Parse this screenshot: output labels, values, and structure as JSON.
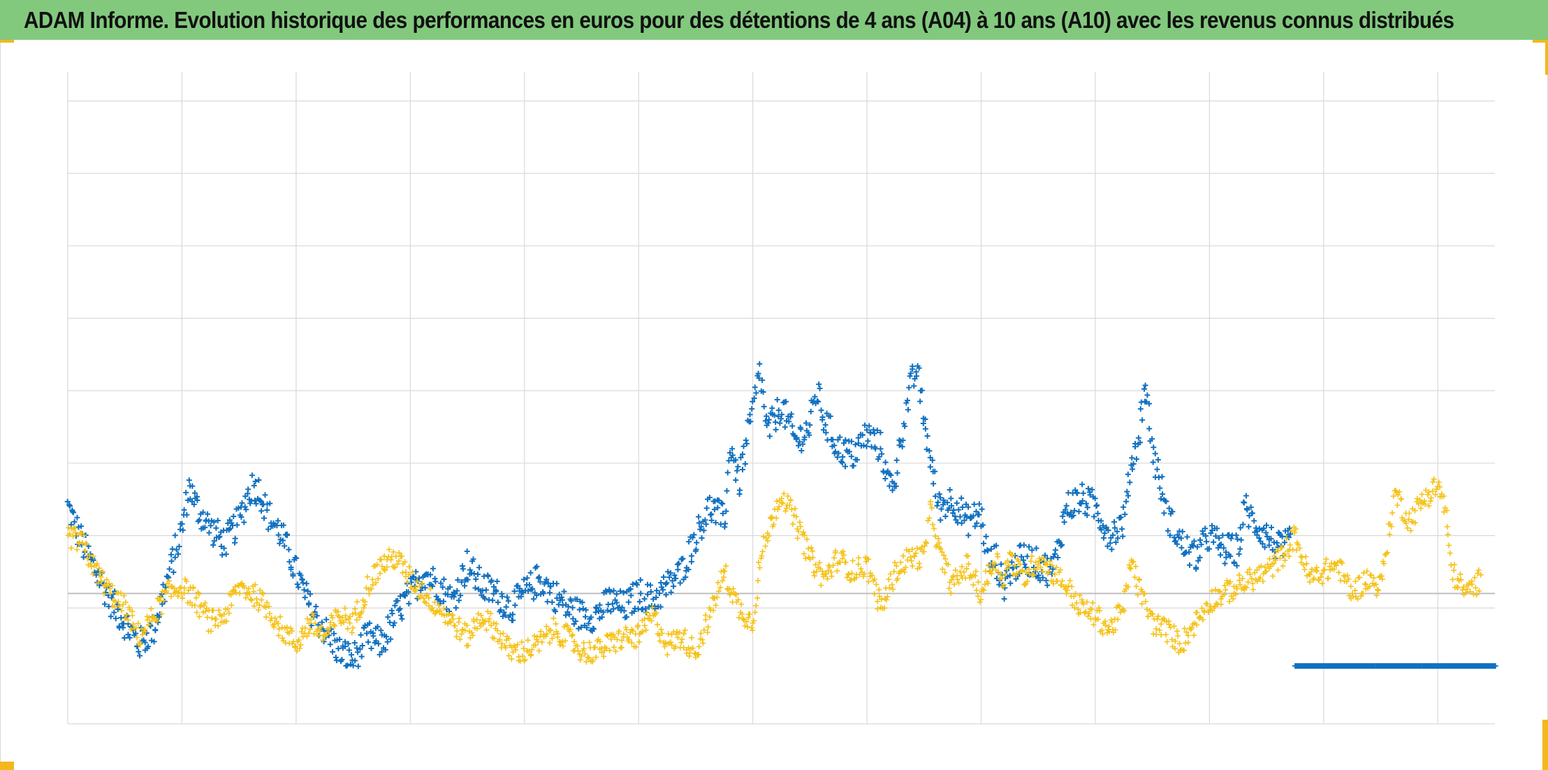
{
  "title": "ADAM Informe. Evolution historique des performances en euros pour des détentions de 4 ans (A04) à 10 ans (A10) avec les revenus connus distribués",
  "colors": {
    "title_background": "#82c97e",
    "series_a04": "#1070c0",
    "series_a10": "#f5c218",
    "grid": "#d9d9d9",
    "zero_line": "#bfbfbf",
    "corner_accent": "#f2b81c"
  },
  "chart_data": {
    "type": "scatter",
    "title": "ADAM Informe. Evolution historique des performances en euros pour des détentions de 4 ans (A04) à 10 ans (A10) avec les revenus connus distribués",
    "xlabel": "",
    "ylabel": "",
    "x_tick_labels": [],
    "y_tick_labels": [],
    "grid": true,
    "legend": "none",
    "marker": "+",
    "xlim": [
      0,
      100
    ],
    "ylim": [
      -1.8,
      7.2
    ],
    "y_gridlines": [
      -1.8,
      -0.2,
      0.8,
      1.8,
      2.8,
      3.8,
      4.8,
      5.8,
      6.8
    ],
    "x_gridlines": [
      0,
      8,
      16,
      24,
      32,
      40,
      48,
      56,
      64,
      72,
      80,
      88,
      96
    ],
    "series": [
      {
        "values": [
          [
            0,
            1.2
          ],
          [
            1,
            0.7
          ],
          [
            2,
            0.3
          ],
          [
            3,
            -0.1
          ],
          [
            4,
            -0.4
          ],
          [
            5,
            -0.7
          ],
          [
            6,
            -0.5
          ],
          [
            7,
            0.2
          ],
          [
            8,
            0.9
          ],
          [
            8.5,
            1.5
          ],
          [
            9,
            1.2
          ],
          [
            10,
            0.9
          ],
          [
            11,
            0.7
          ],
          [
            12,
            1.0
          ],
          [
            12.5,
            1.3
          ],
          [
            13,
            1.5
          ],
          [
            13.5,
            1.4
          ],
          [
            14,
            1.1
          ],
          [
            15,
            0.8
          ],
          [
            16,
            0.3
          ],
          [
            17,
            -0.2
          ],
          [
            18,
            -0.5
          ],
          [
            19,
            -0.8
          ],
          [
            20,
            -0.9
          ],
          [
            21,
            -0.6
          ],
          [
            22,
            -0.7
          ],
          [
            23,
            -0.3
          ],
          [
            24,
            0.0
          ],
          [
            25,
            0.3
          ],
          [
            26,
            0.1
          ],
          [
            27,
            -0.1
          ],
          [
            28,
            0.4
          ],
          [
            29,
            0.1
          ],
          [
            30,
            0.0
          ],
          [
            31,
            -0.2
          ],
          [
            32,
            0.0
          ],
          [
            33,
            0.2
          ],
          [
            34,
            0.0
          ],
          [
            35,
            -0.2
          ],
          [
            36,
            -0.3
          ],
          [
            37,
            -0.3
          ],
          [
            38,
            -0.1
          ],
          [
            39,
            -0.2
          ],
          [
            40,
            0.0
          ],
          [
            41,
            -0.1
          ],
          [
            42,
            0.1
          ],
          [
            43,
            0.3
          ],
          [
            44,
            0.8
          ],
          [
            45,
            1.2
          ],
          [
            46,
            1.0
          ],
          [
            46.5,
            2.1
          ],
          [
            47,
            1.5
          ],
          [
            48,
            2.5
          ],
          [
            48.5,
            3.1
          ],
          [
            49,
            2.2
          ],
          [
            50,
            2.6
          ],
          [
            51,
            2.1
          ],
          [
            52,
            2.3
          ],
          [
            52.5,
            2.8
          ],
          [
            53,
            2.4
          ],
          [
            54,
            2.0
          ],
          [
            55,
            1.9
          ],
          [
            56,
            2.2
          ],
          [
            57,
            2.0
          ],
          [
            57.5,
            1.5
          ],
          [
            58,
            1.6
          ],
          [
            58.5,
            2.3
          ],
          [
            59,
            2.8
          ],
          [
            59.5,
            3.1
          ],
          [
            60,
            2.4
          ],
          [
            61,
            1.2
          ],
          [
            62,
            1.3
          ],
          [
            63,
            1.0
          ],
          [
            64,
            1.1
          ],
          [
            64.5,
            0.4
          ],
          [
            65,
            0.5
          ],
          [
            65.5,
            0.1
          ],
          [
            66,
            0.3
          ],
          [
            67,
            0.5
          ],
          [
            68,
            0.4
          ],
          [
            69,
            0.3
          ],
          [
            70,
            1.2
          ],
          [
            71,
            1.3
          ],
          [
            72,
            1.2
          ],
          [
            73,
            0.8
          ],
          [
            74,
            1.0
          ],
          [
            74.5,
            1.8
          ],
          [
            75,
            2.1
          ],
          [
            75.5,
            2.9
          ],
          [
            76,
            2.0
          ],
          [
            77,
            1.1
          ],
          [
            77.5,
            0.9
          ],
          [
            78,
            0.7
          ],
          [
            79,
            0.5
          ],
          [
            80,
            0.8
          ],
          [
            81,
            0.6
          ],
          [
            82,
            0.6
          ],
          [
            82.5,
            1.2
          ],
          [
            83,
            1.0
          ],
          [
            84,
            0.8
          ],
          [
            85,
            0.6
          ],
          [
            85.7,
            0.7
          ]
        ]
      },
      {
        "values": [
          [
            0,
            0.8
          ],
          [
            1,
            0.7
          ],
          [
            2,
            0.3
          ],
          [
            3,
            0.0
          ],
          [
            4,
            -0.2
          ],
          [
            5,
            -0.6
          ],
          [
            6,
            -0.3
          ],
          [
            7,
            0.0
          ],
          [
            8,
            0.1
          ],
          [
            9,
            -0.1
          ],
          [
            10,
            -0.4
          ],
          [
            11,
            -0.3
          ],
          [
            12,
            0.1
          ],
          [
            13,
            0.0
          ],
          [
            14,
            -0.2
          ],
          [
            15,
            -0.5
          ],
          [
            16,
            -0.7
          ],
          [
            17,
            -0.4
          ],
          [
            18,
            -0.6
          ],
          [
            19,
            -0.3
          ],
          [
            20,
            -0.4
          ],
          [
            21,
            0.1
          ],
          [
            22,
            0.4
          ],
          [
            23,
            0.5
          ],
          [
            24,
            0.2
          ],
          [
            25,
            0.0
          ],
          [
            26,
            -0.2
          ],
          [
            27,
            -0.4
          ],
          [
            28,
            -0.6
          ],
          [
            29,
            -0.3
          ],
          [
            30,
            -0.5
          ],
          [
            31,
            -0.8
          ],
          [
            32,
            -0.8
          ],
          [
            33,
            -0.7
          ],
          [
            34,
            -0.5
          ],
          [
            35,
            -0.6
          ],
          [
            36,
            -0.8
          ],
          [
            37,
            -0.8
          ],
          [
            38,
            -0.7
          ],
          [
            39,
            -0.6
          ],
          [
            40,
            -0.6
          ],
          [
            41,
            -0.3
          ],
          [
            42,
            -0.7
          ],
          [
            43,
            -0.6
          ],
          [
            44,
            -0.8
          ],
          [
            45,
            -0.3
          ],
          [
            46,
            0.3
          ],
          [
            47,
            -0.2
          ],
          [
            48,
            -0.4
          ],
          [
            48.5,
            0.4
          ],
          [
            49,
            0.8
          ],
          [
            50,
            1.4
          ],
          [
            51,
            1.0
          ],
          [
            52,
            0.5
          ],
          [
            53,
            0.2
          ],
          [
            54,
            0.5
          ],
          [
            55,
            0.3
          ],
          [
            56,
            0.4
          ],
          [
            57,
            -0.2
          ],
          [
            58,
            0.3
          ],
          [
            59,
            0.5
          ],
          [
            60,
            0.5
          ],
          [
            60.5,
            1.2
          ],
          [
            61,
            0.6
          ],
          [
            62,
            0.1
          ],
          [
            63,
            0.4
          ],
          [
            64,
            0.0
          ],
          [
            65,
            0.5
          ],
          [
            65.5,
            0.2
          ],
          [
            66,
            0.5
          ],
          [
            67,
            0.2
          ],
          [
            68,
            0.5
          ],
          [
            69,
            0.3
          ],
          [
            70,
            0.1
          ],
          [
            71,
            -0.2
          ],
          [
            72,
            -0.3
          ],
          [
            73,
            -0.5
          ],
          [
            74,
            -0.2
          ],
          [
            74.5,
            0.5
          ],
          [
            75,
            0.1
          ],
          [
            76,
            -0.4
          ],
          [
            77,
            -0.5
          ],
          [
            78,
            -0.7
          ],
          [
            79,
            -0.4
          ],
          [
            80,
            -0.1
          ],
          [
            81,
            0.0
          ],
          [
            82,
            0.1
          ],
          [
            83,
            0.2
          ],
          [
            84,
            0.3
          ],
          [
            85,
            0.5
          ],
          [
            86,
            0.8
          ],
          [
            87,
            0.2
          ],
          [
            88,
            0.3
          ],
          [
            89,
            0.4
          ],
          [
            90,
            0.0
          ],
          [
            91,
            0.2
          ],
          [
            92,
            0.1
          ],
          [
            93,
            1.4
          ],
          [
            94,
            1.0
          ],
          [
            95,
            1.3
          ],
          [
            96,
            1.5
          ],
          [
            96.5,
            1.2
          ],
          [
            97,
            0.3
          ],
          [
            98,
            0.0
          ],
          [
            99,
            0.2
          ]
        ]
      },
      {
        "values": [
          [
            86,
            -1.0
          ],
          [
            100,
            -1.0
          ]
        ]
      }
    ]
  }
}
